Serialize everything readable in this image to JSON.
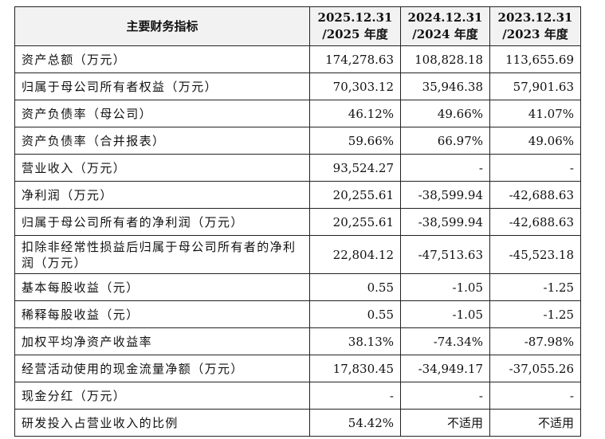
{
  "table": {
    "header": [
      [
        "主要财务指标"
      ],
      [
        "2025.12.31",
        "/2025 年度"
      ],
      [
        "2024.12.31",
        "/2024 年度"
      ],
      [
        "2023.12.31",
        "/2023 年度"
      ]
    ],
    "rows": [
      [
        "资产总额（万元）",
        "174,278.63",
        "108,828.18",
        "113,655.69"
      ],
      [
        "归属于母公司所有者权益（万元）",
        "70,303.12",
        "35,946.38",
        "57,901.63"
      ],
      [
        "资产负债率（母公司）",
        "46.12%",
        "49.66%",
        "41.07%"
      ],
      [
        "资产负债率（合并报表）",
        "59.66%",
        "66.97%",
        "49.06%"
      ],
      [
        "营业收入（万元）",
        "93,524.27",
        "-",
        "-"
      ],
      [
        "净利润（万元）",
        "20,255.61",
        "-38,599.94",
        "-42,688.63"
      ],
      [
        "归属于母公司所有者的净利润（万元）",
        "20,255.61",
        "-38,599.94",
        "-42,688.63"
      ],
      [
        "扣除非经常性损益后归属于母公司所有者的净利润（万元）",
        "22,804.12",
        "-47,513.63",
        "-45,523.18"
      ],
      [
        "基本每股收益（元）",
        "0.55",
        "-1.05",
        "-1.25"
      ],
      [
        "稀释每股收益（元）",
        "0.55",
        "-1.05",
        "-1.25"
      ],
      [
        "加权平均净资产收益率",
        "38.13%",
        "-74.34%",
        "-87.98%"
      ],
      [
        "经营活动使用的现金流量净额（万元）",
        "17,830.45",
        "-34,949.17",
        "-37,055.26"
      ],
      [
        "现金分红（万元）",
        "-",
        "-",
        "-"
      ],
      [
        "研发投入占营业收入的比例",
        "54.42%",
        "不适用",
        "不适用"
      ]
    ]
  }
}
